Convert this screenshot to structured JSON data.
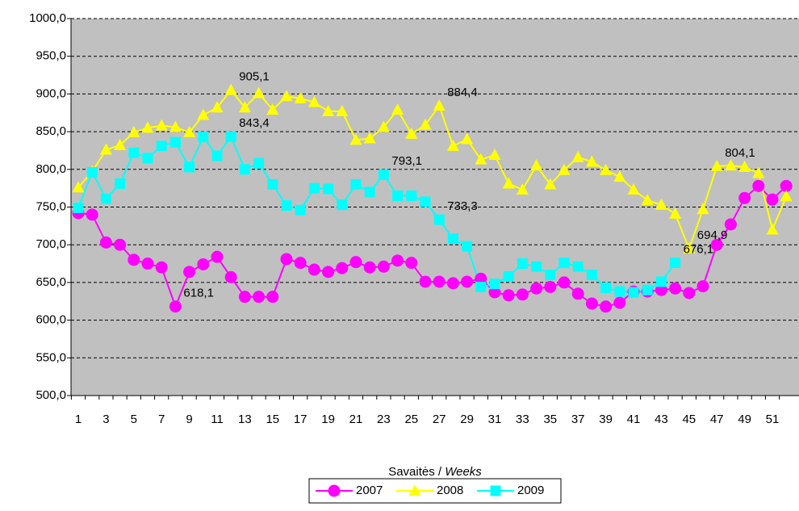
{
  "chart_data": {
    "type": "line",
    "x_label": "Savaitės /",
    "x_label_en": "Weeks",
    "categories": [
      "1",
      null,
      "3",
      null,
      "5",
      null,
      "7",
      null,
      "9",
      null,
      "11",
      null,
      "13",
      null,
      "15",
      null,
      "17",
      null,
      "19",
      null,
      "21",
      null,
      "23",
      null,
      "25",
      null,
      "27",
      null,
      "29",
      null,
      "31",
      null,
      "33",
      null,
      "35",
      null,
      "37",
      null,
      "39",
      null,
      "41",
      null,
      "43",
      null,
      "45",
      null,
      "47",
      null,
      "49",
      null,
      "51",
      null
    ],
    "ylim": [
      500,
      1000
    ],
    "yticks": [
      {
        "value": 500,
        "label": "500,0"
      },
      {
        "value": 550,
        "label": "550,0"
      },
      {
        "value": 600,
        "label": "600,0"
      },
      {
        "value": 650,
        "label": "650,0"
      },
      {
        "value": 700,
        "label": "700,0"
      },
      {
        "value": 750,
        "label": "750,0"
      },
      {
        "value": 800,
        "label": "800,0"
      },
      {
        "value": 850,
        "label": "850,0"
      },
      {
        "value": 900,
        "label": "900,0"
      },
      {
        "value": 950,
        "label": "950,0"
      },
      {
        "value": 1000,
        "label": "1000,0"
      }
    ],
    "grid": true,
    "series": [
      {
        "name": "2007",
        "color": "#ff00ff",
        "marker": "circle",
        "values": [
          742,
          740,
          703,
          700,
          680,
          675,
          670,
          618.1,
          664,
          674,
          684,
          657,
          631,
          631,
          631,
          681,
          676,
          667,
          664,
          669,
          677,
          670,
          671,
          679,
          676,
          651,
          651,
          649,
          651,
          655,
          637,
          633,
          634,
          642,
          644,
          650,
          635,
          622,
          618,
          623,
          638,
          638,
          640,
          642,
          636,
          645,
          700,
          727,
          762,
          778,
          760,
          778
        ],
        "value_labels": [
          null,
          null,
          null,
          null,
          null,
          null,
          null,
          "618,1",
          null,
          null,
          null,
          null,
          null,
          null,
          null,
          null,
          null,
          null,
          null,
          null,
          null,
          null,
          null,
          null,
          null,
          null,
          null,
          null,
          null,
          null,
          null,
          null,
          null,
          null,
          null,
          null,
          null,
          null,
          null,
          null,
          null,
          null,
          null,
          null,
          null,
          null,
          null,
          null,
          null,
          null,
          null,
          null
        ]
      },
      {
        "name": "2008",
        "color": "#ffff00",
        "marker": "triangle",
        "values": [
          776,
          797,
          826,
          832,
          849,
          855,
          858,
          856,
          849,
          872,
          882,
          905.1,
          882,
          901,
          879,
          897,
          894,
          889,
          877,
          877,
          839,
          841,
          856,
          879,
          847,
          859,
          884.4,
          831,
          840,
          813,
          819,
          781,
          773,
          805,
          780,
          799,
          816,
          810,
          799,
          790,
          773,
          759,
          753,
          741,
          694.9,
          747,
          804.1,
          805,
          803,
          795,
          720,
          764
        ],
        "value_labels": [
          null,
          null,
          null,
          null,
          null,
          null,
          null,
          null,
          null,
          null,
          null,
          "905,1",
          null,
          null,
          null,
          null,
          null,
          null,
          null,
          null,
          null,
          null,
          null,
          null,
          null,
          null,
          "884,4",
          null,
          null,
          null,
          null,
          null,
          null,
          null,
          null,
          null,
          null,
          null,
          null,
          null,
          null,
          null,
          null,
          null,
          "694,9",
          null,
          "804,1",
          null,
          null,
          null,
          null,
          null
        ]
      },
      {
        "name": "2009",
        "color": "#00ffff",
        "marker": "square",
        "values": [
          749,
          796,
          761,
          781,
          822,
          815,
          831,
          836,
          803,
          843,
          818,
          843.4,
          800,
          808,
          780,
          752,
          746,
          775,
          774,
          753,
          780,
          770,
          793.1,
          765,
          765,
          757,
          733.3,
          708,
          698,
          644,
          648,
          658,
          675,
          671,
          660,
          676,
          671,
          660,
          643,
          638,
          637,
          640,
          651,
          676.1,
          null,
          null,
          null,
          null,
          null,
          null,
          null,
          null
        ],
        "value_labels": [
          null,
          null,
          null,
          null,
          null,
          null,
          null,
          null,
          null,
          null,
          null,
          "843,4",
          null,
          null,
          null,
          null,
          null,
          null,
          null,
          null,
          null,
          null,
          "793,1",
          null,
          null,
          null,
          "733,3",
          null,
          null,
          null,
          null,
          null,
          null,
          null,
          null,
          null,
          null,
          null,
          null,
          null,
          null,
          null,
          null,
          "676,1",
          null,
          null,
          null,
          null,
          null,
          null,
          null,
          null
        ]
      }
    ]
  }
}
